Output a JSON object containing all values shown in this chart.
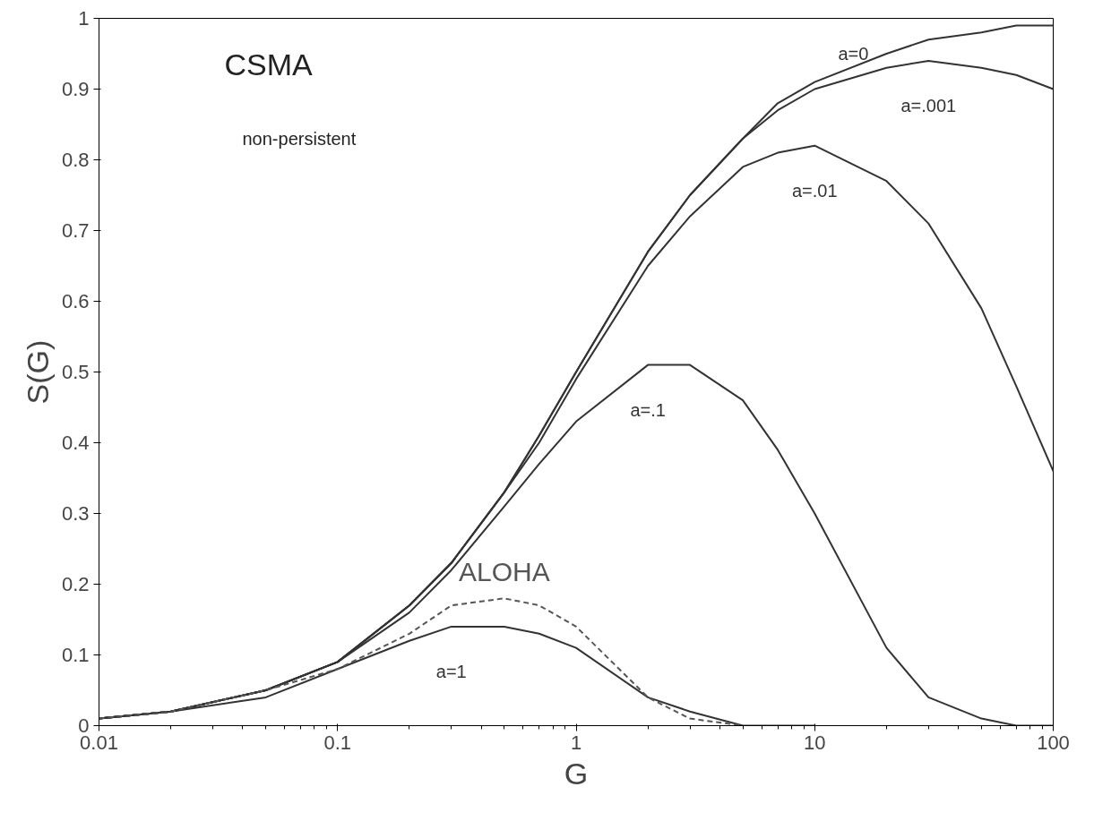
{
  "chart_data": {
    "type": "line",
    "xlabel": "G",
    "ylabel": "S(G)",
    "log": "x",
    "grid": false,
    "legend": false,
    "marker": "none",
    "xlim": [
      0.01,
      100
    ],
    "xticks": [
      0.01,
      0.1,
      1,
      10,
      100
    ],
    "ylim": [
      0,
      1
    ],
    "yticks": [
      0,
      0.1,
      0.2,
      0.3,
      0.4,
      0.5,
      0.6,
      0.7,
      0.8,
      0.9,
      1
    ],
    "x": [
      0.01,
      0.02,
      0.05,
      0.1,
      0.2,
      0.3,
      0.5,
      0.7,
      1,
      2,
      3,
      5,
      7,
      10,
      20,
      30,
      50,
      70,
      100
    ],
    "series": [
      {
        "name": "a=0",
        "color": "#333333",
        "line_style": "solid",
        "values": [
          0.01,
          0.02,
          0.05,
          0.09,
          0.17,
          0.23,
          0.33,
          0.41,
          0.5,
          0.67,
          0.75,
          0.83,
          0.88,
          0.91,
          0.95,
          0.97,
          0.98,
          0.99,
          0.99
        ]
      },
      {
        "name": "a=.001",
        "color": "#333333",
        "line_style": "solid",
        "values": [
          0.01,
          0.02,
          0.05,
          0.09,
          0.17,
          0.23,
          0.33,
          0.41,
          0.5,
          0.67,
          0.75,
          0.83,
          0.87,
          0.9,
          0.93,
          0.94,
          0.93,
          0.92,
          0.9
        ]
      },
      {
        "name": "a=.01",
        "color": "#333333",
        "line_style": "solid",
        "values": [
          0.01,
          0.02,
          0.05,
          0.09,
          0.17,
          0.23,
          0.33,
          0.4,
          0.49,
          0.65,
          0.72,
          0.79,
          0.81,
          0.82,
          0.77,
          0.71,
          0.59,
          0.48,
          0.36
        ]
      },
      {
        "name": "a=.1",
        "color": "#333333",
        "line_style": "solid",
        "values": [
          0.01,
          0.02,
          0.05,
          0.09,
          0.16,
          0.22,
          0.31,
          0.37,
          0.43,
          0.51,
          0.51,
          0.46,
          0.39,
          0.3,
          0.11,
          0.04,
          0.01,
          0,
          0
        ]
      },
      {
        "name": "a=1",
        "color": "#333333",
        "line_style": "solid",
        "values": [
          0.01,
          0.02,
          0.04,
          0.08,
          0.12,
          0.14,
          0.14,
          0.13,
          0.11,
          0.04,
          0.02,
          0,
          0,
          0,
          null,
          null,
          null,
          null,
          null
        ]
      },
      {
        "name": "ALOHA",
        "color": "#555555",
        "line_style": "dashed",
        "values": [
          0.01,
          0.02,
          0.05,
          0.08,
          0.13,
          0.17,
          0.18,
          0.17,
          0.14,
          0.04,
          0.01,
          0,
          null,
          null,
          null,
          null,
          null,
          null,
          null
        ]
      }
    ],
    "annotations": [
      "CSMA",
      "non-persistent"
    ]
  }
}
